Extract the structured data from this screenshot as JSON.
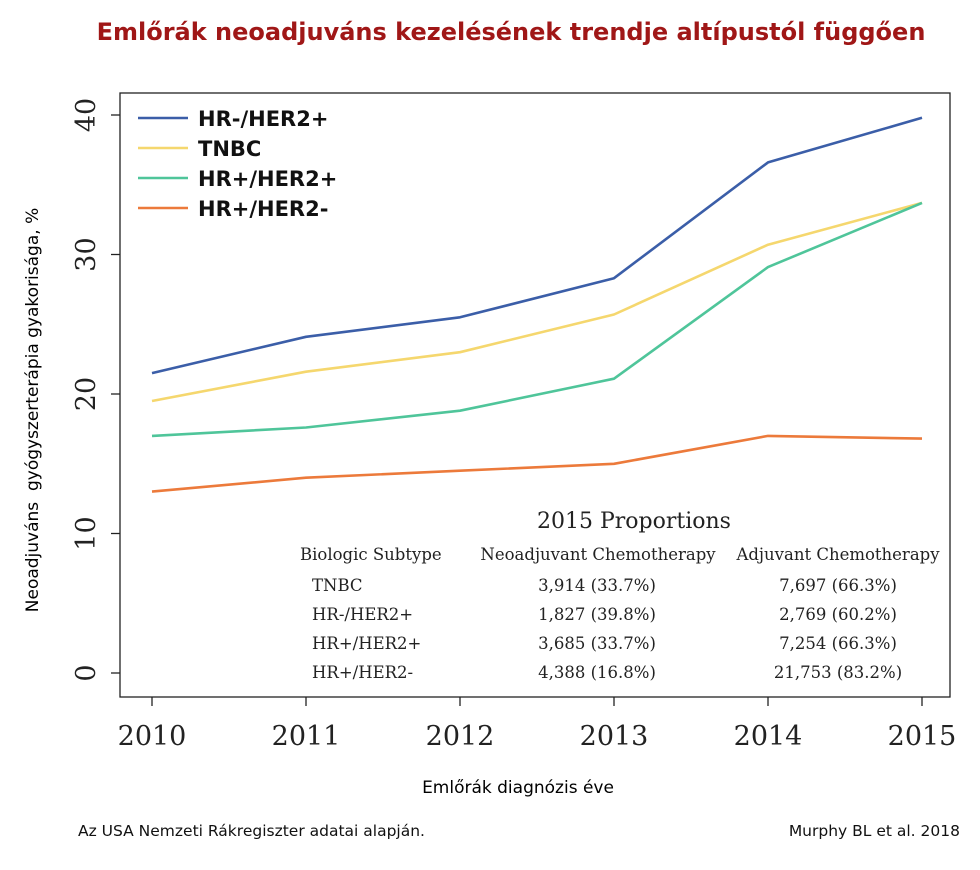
{
  "page": {
    "title": "Emlőrák neoadjuváns kezelésének trendje altípustól függően",
    "xlabel": "Emlőrák diagnózis éve",
    "ylabel": "Neoadjuváns  gyógyszerterápia gyakorisága, %",
    "footnote_left": "Az USA Nemzeti Rákregiszter adatai alapján.",
    "footnote_right": "Murphy BL et al. 2018"
  },
  "chart_data": {
    "type": "line",
    "x": [
      2010,
      2011,
      2012,
      2013,
      2014,
      2015
    ],
    "xticks": [
      "2010",
      "2011",
      "2012",
      "2013",
      "2014",
      "2015"
    ],
    "yticks": [
      "0",
      "10",
      "20",
      "30",
      "40"
    ],
    "ylim": [
      0,
      40
    ],
    "legend_position": "top-left",
    "series": [
      {
        "name": "HR-/HER2+",
        "color": "#3b5ea8",
        "values": [
          21.5,
          24.1,
          25.5,
          28.3,
          36.6,
          39.8
        ]
      },
      {
        "name": "TNBC",
        "color": "#f5d76e",
        "values": [
          19.5,
          21.6,
          23.0,
          25.7,
          30.7,
          33.7
        ]
      },
      {
        "name": "HR+/HER2+",
        "color": "#4fc59a",
        "values": [
          17.0,
          17.6,
          18.8,
          21.1,
          29.1,
          33.7
        ]
      },
      {
        "name": "HR+/HER2-",
        "color": "#ec7a3b",
        "values": [
          13.0,
          14.0,
          14.5,
          15.0,
          17.0,
          16.8
        ]
      }
    ],
    "table": {
      "title": "2015 Proportions",
      "headers": [
        "Biologic Subtype",
        "Neoadjuvant Chemotherapy",
        "Adjuvant Chemotherapy"
      ],
      "rows": [
        [
          "TNBC",
          "3,914 (33.7%)",
          "7,697 (66.3%)"
        ],
        [
          "HR-/HER2+",
          "1,827 (39.8%)",
          "2,769 (60.2%)"
        ],
        [
          "HR+/HER2+",
          "3,685 (33.7%)",
          "7,254 (66.3%)"
        ],
        [
          "HR+/HER2-",
          "4,388 (16.8%)",
          "21,753 (83.2%)"
        ]
      ]
    }
  }
}
